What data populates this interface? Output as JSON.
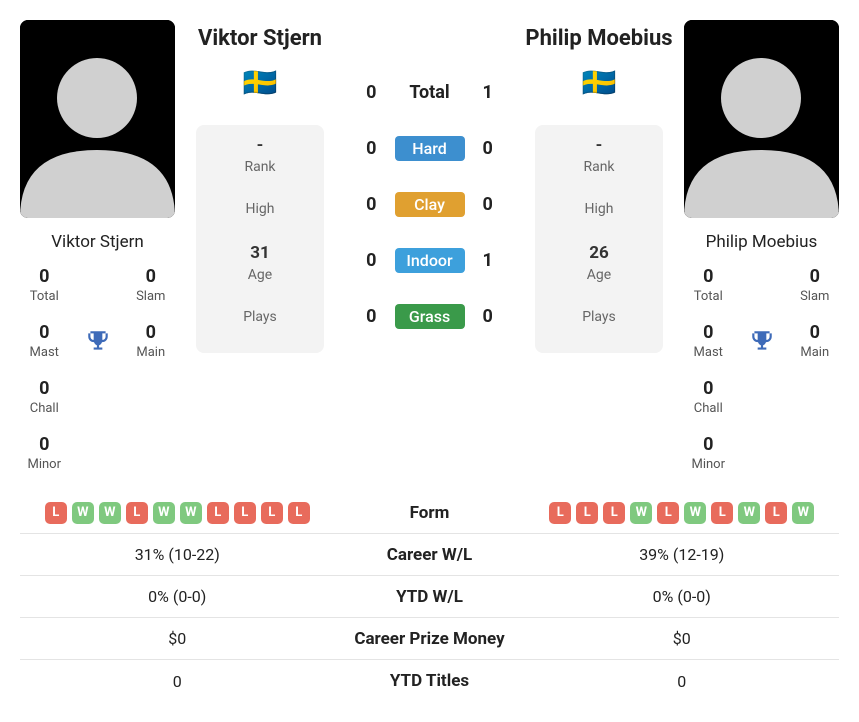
{
  "colors": {
    "win": "#7fc97f",
    "loss": "#e86b5c",
    "hard": "#3d8fcf",
    "clay": "#e0a030",
    "indoor": "#3da0dc",
    "grass": "#3a9a4a",
    "trophy": "#3d6ab8"
  },
  "surfaces": [
    {
      "key": "hard",
      "label": "Hard",
      "l": "0",
      "r": "0"
    },
    {
      "key": "clay",
      "label": "Clay",
      "l": "0",
      "r": "0"
    },
    {
      "key": "indoor",
      "label": "Indoor",
      "l": "0",
      "r": "1"
    },
    {
      "key": "grass",
      "label": "Grass",
      "l": "0",
      "r": "0"
    }
  ],
  "h2h_total_label": "Total",
  "h2h_total": {
    "l": "0",
    "r": "1"
  },
  "player1": {
    "name": "Viktor Stjern",
    "country_flag": "🇸🇪",
    "stats": {
      "rank": "-",
      "rank_lbl": "Rank",
      "high_lbl": "High",
      "age": "31",
      "age_lbl": "Age",
      "plays_lbl": "Plays"
    },
    "titles": {
      "total": {
        "v": "0",
        "lbl": "Total"
      },
      "slam": {
        "v": "0",
        "lbl": "Slam"
      },
      "mast": {
        "v": "0",
        "lbl": "Mast"
      },
      "main": {
        "v": "0",
        "lbl": "Main"
      },
      "chall": {
        "v": "0",
        "lbl": "Chall"
      },
      "minor": {
        "v": "0",
        "lbl": "Minor"
      }
    }
  },
  "player2": {
    "name": "Philip Moebius",
    "country_flag": "🇸🇪",
    "stats": {
      "rank": "-",
      "rank_lbl": "Rank",
      "high_lbl": "High",
      "age": "26",
      "age_lbl": "Age",
      "plays_lbl": "Plays"
    },
    "titles": {
      "total": {
        "v": "0",
        "lbl": "Total"
      },
      "slam": {
        "v": "0",
        "lbl": "Slam"
      },
      "mast": {
        "v": "0",
        "lbl": "Mast"
      },
      "main": {
        "v": "0",
        "lbl": "Main"
      },
      "chall": {
        "v": "0",
        "lbl": "Chall"
      },
      "minor": {
        "v": "0",
        "lbl": "Minor"
      }
    }
  },
  "compare": {
    "form_label": "Form",
    "form1": [
      "L",
      "W",
      "W",
      "L",
      "W",
      "W",
      "L",
      "L",
      "L",
      "L"
    ],
    "form2": [
      "L",
      "L",
      "L",
      "W",
      "L",
      "W",
      "L",
      "W",
      "L",
      "W"
    ],
    "rows": [
      {
        "label": "Career W/L",
        "l": "31% (10-22)",
        "r": "39% (12-19)"
      },
      {
        "label": "YTD W/L",
        "l": "0% (0-0)",
        "r": "0% (0-0)"
      },
      {
        "label": "Career Prize Money",
        "l": "$0",
        "r": "$0"
      },
      {
        "label": "YTD Titles",
        "l": "0",
        "r": "0"
      }
    ]
  }
}
